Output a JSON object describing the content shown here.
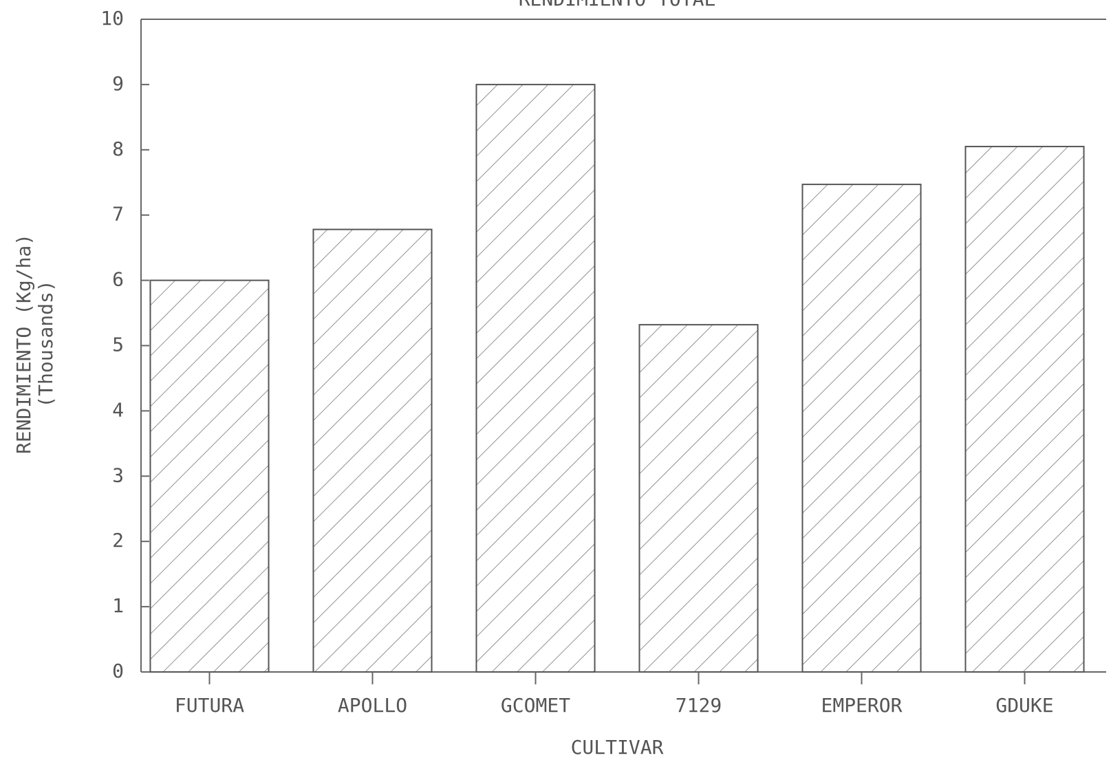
{
  "chart_data": {
    "type": "bar",
    "title": "RENDIMIENTO TOTAL",
    "y_label": "RENDIMIENTO (Kg/ha)",
    "y_label_2": "(Thousands)",
    "x_label": "CULTIVAR",
    "categories": [
      "FUTURA",
      "APOLLO",
      "GCOMET",
      "7129",
      "EMPEROR",
      "GDUKE"
    ],
    "values": [
      6.0,
      6.78,
      9.0,
      5.32,
      7.47,
      8.05
    ],
    "color": "#555555",
    "ylim": [
      0,
      10
    ],
    "yticks": [
      0,
      1,
      2,
      3,
      4,
      5,
      6,
      7,
      8,
      9,
      10
    ],
    "grid": false
  }
}
